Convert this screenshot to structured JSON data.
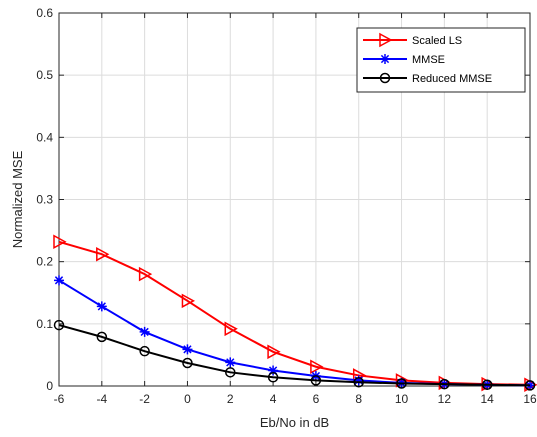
{
  "chart_data": {
    "type": "line",
    "xlabel": "Eb/No in dB",
    "ylabel": "Normalized MSE",
    "xlim": [
      -6,
      16
    ],
    "ylim": [
      0,
      0.6
    ],
    "xticks": [
      "-6",
      "-4",
      "-2",
      "0",
      "2",
      "4",
      "6",
      "8",
      "10",
      "12",
      "14",
      "16"
    ],
    "yticks": [
      "0",
      "0.1",
      "0.2",
      "0.3",
      "0.4",
      "0.5",
      "0.6"
    ],
    "grid": true,
    "legend_position": "top-right",
    "x": [
      -6,
      -4,
      -2,
      0,
      2,
      4,
      6,
      8,
      10,
      12,
      14,
      16
    ],
    "series": [
      {
        "name": "Scaled LS",
        "color": "#ff0000",
        "marker": "triangle-right",
        "values": [
          0.232,
          0.212,
          0.18,
          0.137,
          0.092,
          0.055,
          0.031,
          0.017,
          0.009,
          0.005,
          0.003,
          0.002
        ]
      },
      {
        "name": "MMSE",
        "color": "#0000ff",
        "marker": "asterisk",
        "values": [
          0.17,
          0.128,
          0.087,
          0.059,
          0.038,
          0.025,
          0.016,
          0.009,
          0.005,
          0.003,
          0.002,
          0.001
        ]
      },
      {
        "name": "Reduced MMSE",
        "color": "#000000",
        "marker": "circle",
        "values": [
          0.098,
          0.079,
          0.056,
          0.037,
          0.022,
          0.014,
          0.009,
          0.006,
          0.004,
          0.003,
          0.002,
          0.001
        ]
      }
    ]
  }
}
